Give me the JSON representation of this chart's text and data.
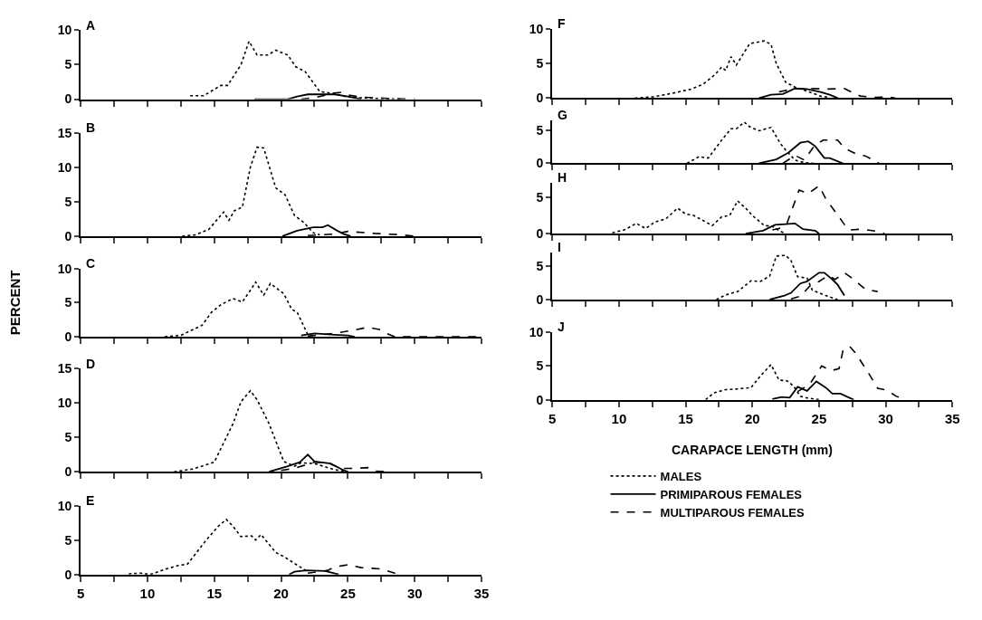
{
  "chart_data": [
    {
      "type": "line",
      "title": "A",
      "xlim": [
        5,
        35
      ],
      "xticks": [
        5,
        {
          "value": 7.5,
          "label": null
        },
        10,
        {
          "value": 12.5,
          "label": null
        },
        15,
        {
          "value": 17.5,
          "label": null
        },
        20,
        {
          "value": 22.5,
          "label": null
        },
        25,
        {
          "value": 27.5,
          "label": null
        },
        30,
        {
          "value": 32.5,
          "label": null
        },
        35
      ],
      "ylim": [
        0,
        10
      ],
      "yticks": [
        0,
        5,
        10
      ],
      "tick_labels": "y",
      "series": [
        {
          "color": "#000000",
          "line_style": "dotted",
          "x": [
            13.2,
            14.2,
            15.5,
            16,
            17,
            17.6,
            18.2,
            19,
            19.6,
            20.5,
            21.1,
            21.8,
            22.9,
            24,
            25,
            27,
            29
          ],
          "values": [
            0.5,
            0.5,
            2,
            2,
            5,
            8.4,
            6.4,
            6.4,
            7.1,
            6.4,
            4.7,
            4,
            1.1,
            0.8,
            0.3,
            0.1,
            0
          ]
        },
        {
          "color": "#000000",
          "line_style": "solid",
          "x": [
            18,
            20.5,
            21.2,
            22,
            23,
            24,
            25,
            26
          ],
          "values": [
            0,
            0,
            0.4,
            0.7,
            0.7,
            0.7,
            0.4,
            0
          ]
        },
        {
          "color": "#000000",
          "line_style": "dashed",
          "x": [
            21.5,
            22.5,
            24,
            24.5,
            25,
            26,
            27,
            28,
            30
          ],
          "values": [
            0,
            0.2,
            0.9,
            1,
            0.6,
            0.3,
            0.2,
            0.1,
            0
          ]
        }
      ]
    },
    {
      "type": "line",
      "title": "B",
      "xlim": [
        5,
        35
      ],
      "xticks": [
        5,
        {
          "value": 7.5,
          "label": null
        },
        10,
        {
          "value": 12.5,
          "label": null
        },
        15,
        {
          "value": 17.5,
          "label": null
        },
        20,
        {
          "value": 22.5,
          "label": null
        },
        25,
        {
          "value": 27.5,
          "label": null
        },
        30,
        {
          "value": 32.5,
          "label": null
        },
        35
      ],
      "ylim": [
        0,
        15
      ],
      "yticks": [
        0,
        5,
        10,
        15
      ],
      "tick_labels": "y",
      "series": [
        {
          "color": "#000000",
          "line_style": "dotted",
          "x": [
            12.6,
            13.6,
            14.6,
            15.7,
            16.1,
            16.5,
            17.1,
            17.7,
            18.2,
            18.7,
            19.6,
            20.3,
            21,
            21.7,
            22.4,
            22.9
          ],
          "values": [
            0,
            0.2,
            1,
            3.5,
            2.3,
            3.7,
            4.2,
            10,
            12.9,
            12.8,
            7,
            6,
            3,
            2,
            0.5,
            0.2
          ]
        },
        {
          "color": "#000000",
          "line_style": "solid",
          "x": [
            20.1,
            21.2,
            22.4,
            23.1,
            23.5,
            24.2,
            24.7,
            25.2
          ],
          "values": [
            0,
            0.8,
            1.3,
            1.3,
            1.6,
            0.8,
            0.3,
            0
          ]
        },
        {
          "color": "#000000",
          "line_style": "dashed",
          "x": [
            22,
            24,
            25,
            27,
            29,
            30
          ],
          "values": [
            0.1,
            0.3,
            0.7,
            0.4,
            0.2,
            0
          ]
        }
      ]
    },
    {
      "type": "line",
      "title": "C",
      "ylabel": "PERCENT",
      "xlim": [
        5,
        35
      ],
      "xticks": [
        5,
        {
          "value": 7.5,
          "label": null
        },
        10,
        {
          "value": 12.5,
          "label": null
        },
        15,
        {
          "value": 17.5,
          "label": null
        },
        20,
        {
          "value": 22.5,
          "label": null
        },
        25,
        {
          "value": 27.5,
          "label": null
        },
        30,
        {
          "value": 32.5,
          "label": null
        },
        35
      ],
      "ylim": [
        0,
        10
      ],
      "yticks": [
        0,
        5,
        10
      ],
      "tick_labels": "y",
      "series": [
        {
          "color": "#000000",
          "line_style": "dotted",
          "x": [
            11.3,
            12.5,
            14.1,
            14.8,
            15.5,
            16.4,
            17.1,
            17.6,
            18.1,
            18.7,
            19.2,
            20.2,
            20.8,
            21.2,
            22,
            22.4
          ],
          "values": [
            0,
            0.2,
            1.7,
            3.6,
            4.7,
            5.6,
            5.1,
            6.5,
            8,
            6.1,
            7.8,
            6.3,
            4,
            3.6,
            0.3,
            0.2
          ]
        },
        {
          "color": "#000000",
          "line_style": "solid",
          "x": [
            21.5,
            22.5,
            24,
            25,
            25.5
          ],
          "values": [
            0.2,
            0.5,
            0.3,
            0.2,
            0
          ]
        },
        {
          "color": "#000000",
          "line_style": "dashed",
          "x": [
            22,
            24,
            25.5,
            26.5,
            27.5,
            28,
            28.5,
            35
          ],
          "values": [
            0.1,
            0.5,
            1,
            1.4,
            1,
            0.4,
            0,
            0
          ]
        }
      ]
    },
    {
      "type": "line",
      "title": "D",
      "xlim": [
        5,
        35
      ],
      "xticks": [
        5,
        {
          "value": 7.5,
          "label": null
        },
        10,
        {
          "value": 12.5,
          "label": null
        },
        15,
        {
          "value": 17.5,
          "label": null
        },
        20,
        {
          "value": 22.5,
          "label": null
        },
        25,
        {
          "value": 27.5,
          "label": null
        },
        30,
        {
          "value": 32.5,
          "label": null
        },
        35
      ],
      "ylim": [
        0,
        15
      ],
      "yticks": [
        0,
        5,
        10,
        15
      ],
      "tick_labels": "y",
      "series": [
        {
          "color": "#000000",
          "line_style": "dotted",
          "x": [
            12,
            13.4,
            15,
            16.4,
            17,
            17.7,
            18.2,
            19.1,
            19.7,
            20.2,
            21,
            21.5,
            22.5,
            24,
            25
          ],
          "values": [
            0,
            0.4,
            1.4,
            7,
            10.2,
            11.8,
            10.5,
            7,
            4,
            1.5,
            0.8,
            1.3,
            1.2,
            0.3,
            0
          ]
        },
        {
          "color": "#000000",
          "line_style": "solid",
          "x": [
            19.1,
            20.5,
            21.4,
            22,
            22.5,
            23.7,
            24.6,
            25
          ],
          "values": [
            0,
            0.8,
            1.4,
            2.5,
            1.5,
            1.2,
            0.3,
            0
          ]
        },
        {
          "color": "#000000",
          "line_style": "dashed",
          "x": [
            20,
            21,
            22.5,
            23.5,
            24.5,
            25.5,
            26.5,
            27,
            28
          ],
          "values": [
            0.2,
            0.5,
            1.4,
            1.3,
            0.5,
            0.5,
            0.6,
            0.1,
            0
          ]
        }
      ]
    },
    {
      "type": "line",
      "title": "E",
      "xlim": [
        5,
        35
      ],
      "xticks": [
        5,
        {
          "value": 7.5,
          "label": null
        },
        10,
        {
          "value": 12.5,
          "label": null
        },
        15,
        {
          "value": 17.5,
          "label": null
        },
        20,
        {
          "value": 22.5,
          "label": null
        },
        25,
        {
          "value": 27.5,
          "label": null
        },
        30,
        {
          "value": 32.5,
          "label": null
        },
        35
      ],
      "ylim": [
        0,
        10
      ],
      "yticks": [
        0,
        5,
        10
      ],
      "series": [
        {
          "color": "#000000",
          "line_style": "dotted",
          "x": [
            8.6,
            9.5,
            10.2,
            11.4,
            12.3,
            13,
            14.4,
            15.3,
            15.9,
            16.4,
            17,
            17.8,
            18.1,
            18.5,
            19.6,
            20.3,
            21,
            22
          ],
          "values": [
            0.1,
            0.2,
            0,
            0.8,
            1.3,
            1.5,
            5,
            7,
            8,
            7,
            5.5,
            5.6,
            5,
            5.8,
            3.2,
            2.5,
            1.6,
            0.4
          ]
        },
        {
          "color": "#000000",
          "line_style": "solid",
          "x": [
            20.6,
            21,
            21.9,
            23.3,
            24.1,
            24.3
          ],
          "values": [
            0,
            0.4,
            0.6,
            0.5,
            0.1,
            0
          ]
        },
        {
          "color": "#000000",
          "line_style": "dashed",
          "x": [
            22,
            23.5,
            24,
            25,
            26,
            27.5,
            28.5,
            29
          ],
          "values": [
            0.2,
            0.6,
            1.1,
            1.4,
            1,
            0.8,
            0.2,
            0
          ]
        }
      ]
    },
    {
      "type": "line",
      "title": "F",
      "xlim": [
        5,
        35
      ],
      "xticks": [
        5,
        {
          "value": 7.5,
          "label": null
        },
        10,
        {
          "value": 12.5,
          "label": null
        },
        15,
        {
          "value": 17.5,
          "label": null
        },
        20,
        {
          "value": 22.5,
          "label": null
        },
        25,
        {
          "value": 27.5,
          "label": null
        },
        30,
        {
          "value": 32.5,
          "label": null
        },
        35
      ],
      "ylim": [
        0,
        10
      ],
      "yticks": [
        0,
        5,
        10
      ],
      "tick_labels": "y",
      "series": [
        {
          "color": "#000000",
          "line_style": "dotted",
          "x": [
            11.2,
            12.6,
            14,
            15.4,
            16.3,
            17.2,
            17.7,
            18,
            18.4,
            18.8,
            19.8,
            20.9,
            21.4,
            21.8,
            22.5,
            23.2,
            24.1,
            25.1,
            25.8
          ],
          "values": [
            0,
            0.2,
            0.7,
            1.3,
            2,
            3.4,
            4.5,
            4,
            6,
            4.8,
            7.9,
            8.3,
            7.8,
            5,
            2.3,
            1.6,
            1,
            0.3,
            0.1
          ]
        },
        {
          "color": "#000000",
          "line_style": "solid",
          "x": [
            20.5,
            21.4,
            22.3,
            23.2,
            24.1,
            25.1,
            25.8,
            26.4
          ],
          "values": [
            0,
            0.5,
            0.6,
            1.4,
            1.3,
            0.9,
            0.5,
            0
          ]
        },
        {
          "color": "#000000",
          "line_style": "dashed",
          "x": [
            22,
            23.2,
            24.4,
            25.5,
            26.9,
            27.6,
            28.1,
            29.3,
            30.2,
            30.7
          ],
          "values": [
            0.9,
            1.4,
            1.4,
            1.3,
            1.4,
            0.7,
            0.3,
            0.1,
            0.2,
            0
          ]
        }
      ]
    },
    {
      "type": "line",
      "title": "G",
      "xlim": [
        5,
        35
      ],
      "xticks": [
        5,
        {
          "value": 7.5,
          "label": null
        },
        10,
        {
          "value": 12.5,
          "label": null
        },
        15,
        {
          "value": 17.5,
          "label": null
        },
        20,
        {
          "value": 22.5,
          "label": null
        },
        25,
        {
          "value": 27.5,
          "label": null
        },
        30,
        {
          "value": 32.5,
          "label": null
        },
        35
      ],
      "ylim": [
        0,
        6.5
      ],
      "yticks": [
        0,
        5
      ],
      "tick_labels": "y",
      "series": [
        {
          "color": "#000000",
          "line_style": "dotted",
          "x": [
            15.1,
            16,
            16.7,
            17.7,
            18.4,
            18.8,
            19.4,
            19.8,
            20.5,
            21.4,
            22.1,
            22.5,
            23.2,
            23.9,
            24.6
          ],
          "values": [
            0,
            1,
            0.8,
            3.5,
            5.2,
            5.2,
            6.2,
            5.5,
            4.9,
            5.4,
            3,
            2,
            0.5,
            0.1,
            0
          ]
        },
        {
          "color": "#000000",
          "line_style": "solid",
          "x": [
            20.5,
            21.8,
            22.7,
            23.6,
            24.2,
            24.7,
            25.4,
            25.8,
            26.8
          ],
          "values": [
            0,
            0.6,
            1.6,
            3.1,
            3.3,
            2.6,
            0.8,
            0.8,
            0
          ]
        },
        {
          "color": "#000000",
          "line_style": "dashed",
          "x": [
            22.3,
            23.2,
            23.9,
            24.6,
            25.3,
            26.4,
            26.9,
            27.8,
            28.5,
            29.5
          ],
          "values": [
            0,
            1.2,
            0.5,
            2.5,
            3.5,
            3.5,
            2.3,
            1.4,
            1.1,
            0
          ]
        }
      ]
    },
    {
      "type": "line",
      "title": "H",
      "xlim": [
        5,
        35
      ],
      "xticks": [
        5,
        {
          "value": 7.5,
          "label": null
        },
        10,
        {
          "value": 12.5,
          "label": null
        },
        15,
        {
          "value": 17.5,
          "label": null
        },
        20,
        {
          "value": 22.5,
          "label": null
        },
        25,
        {
          "value": 27.5,
          "label": null
        },
        30,
        {
          "value": 32.5,
          "label": null
        },
        35
      ],
      "ylim": [
        0,
        7
      ],
      "yticks": [
        0,
        5
      ],
      "tick_labels": "y",
      "series": [
        {
          "color": "#000000",
          "line_style": "dotted",
          "x": [
            9.5,
            10.4,
            11.3,
            12,
            12.7,
            13.5,
            14.4,
            15,
            15.6,
            16.5,
            17,
            17.7,
            18.3,
            18.9,
            19.5,
            20,
            20.9,
            21.5,
            22,
            22.5
          ],
          "values": [
            0.1,
            0.5,
            1.4,
            0.7,
            1.6,
            2,
            3.5,
            2.7,
            2.5,
            1.6,
            1.1,
            2.3,
            2.5,
            4.5,
            3.5,
            2.5,
            1.1,
            1,
            0.4,
            0
          ]
        },
        {
          "color": "#000000",
          "line_style": "solid",
          "x": [
            19.5,
            20.8,
            21.7,
            22.5,
            23.2,
            23.8,
            24.7,
            25
          ],
          "values": [
            0,
            0.4,
            1.2,
            1.3,
            1.4,
            0.6,
            0.4,
            0
          ]
        },
        {
          "color": "#000000",
          "line_style": "dashed",
          "x": [
            21.5,
            22,
            22.6,
            23.5,
            24.2,
            25,
            25.5,
            26.5,
            27,
            27.3,
            28.2,
            29.4,
            29.9
          ],
          "values": [
            0.5,
            0.7,
            1.4,
            6,
            5.5,
            6.6,
            4.8,
            2.3,
            1,
            0.5,
            0.6,
            0.3,
            0
          ]
        }
      ]
    },
    {
      "type": "line",
      "title": "I",
      "xlim": [
        5,
        35
      ],
      "xticks": [
        5,
        {
          "value": 7.5,
          "label": null
        },
        10,
        {
          "value": 12.5,
          "label": null
        },
        15,
        {
          "value": 17.5,
          "label": null
        },
        20,
        {
          "value": 22.5,
          "label": null
        },
        25,
        {
          "value": 27.5,
          "label": null
        },
        30,
        {
          "value": 32.5,
          "label": null
        },
        35
      ],
      "ylim": [
        0,
        7
      ],
      "yticks": [
        0,
        5
      ],
      "tick_labels": "y",
      "series": [
        {
          "color": "#000000",
          "line_style": "dotted",
          "x": [
            17.3,
            18,
            18.9,
            19.9,
            20.6,
            21.3,
            21.8,
            22.5,
            22.9,
            23.4,
            24.1,
            24.5,
            25.5,
            26.2,
            26.4
          ],
          "values": [
            0,
            0.7,
            1.2,
            2.8,
            2.7,
            3.5,
            6.5,
            6.6,
            5.8,
            3.4,
            3.2,
            1.4,
            0.6,
            0.1,
            0
          ]
        },
        {
          "color": "#000000",
          "line_style": "solid",
          "x": [
            21.3,
            22.4,
            22.9,
            23.6,
            24.1,
            25,
            25.4,
            26,
            26.4,
            26.9
          ],
          "values": [
            0,
            0.6,
            1,
            2.4,
            2.7,
            4,
            4,
            3,
            2.2,
            0.6
          ]
        },
        {
          "color": "#000000",
          "line_style": "dashed",
          "x": [
            22.9,
            23.6,
            24.3,
            25,
            25.7,
            26.2,
            26.9,
            27.6,
            28.5,
            29.4
          ],
          "values": [
            0.1,
            0.5,
            2,
            2.7,
            3.6,
            3,
            4,
            3,
            1.5,
            1.2
          ]
        }
      ]
    },
    {
      "type": "line",
      "title": "J",
      "xlabel": "CARAPACE LENGTH (mm)",
      "legend": "bottom",
      "xlim": [
        5,
        35
      ],
      "xticks": [
        5,
        {
          "value": 7.5,
          "label": null
        },
        10,
        {
          "value": 12.5,
          "label": null
        },
        15,
        {
          "value": 17.5,
          "label": null
        },
        20,
        {
          "value": 22.5,
          "label": null
        },
        25,
        {
          "value": 27.5,
          "label": null
        },
        30,
        {
          "value": 32.5,
          "label": null
        },
        35
      ],
      "ylim": [
        0,
        10
      ],
      "yticks": [
        0,
        5,
        10
      ],
      "series": [
        {
          "name": "MALES",
          "color": "#000000",
          "line_style": "dotted",
          "x": [
            16.5,
            17.1,
            18,
            18.9,
            19.9,
            20.6,
            21.4,
            22,
            22.6,
            23.1,
            23.6,
            24,
            25
          ],
          "values": [
            0,
            1,
            1.5,
            1.6,
            1.8,
            3.5,
            5.2,
            2.9,
            2.8,
            2,
            0.5,
            0.3,
            0
          ]
        },
        {
          "name": "PRIMIPAROUS FEMALES",
          "color": "#000000",
          "line_style": "solid",
          "x": [
            21.5,
            22.2,
            22.8,
            23.4,
            24.1,
            24.8,
            25.5,
            26,
            26.6,
            27.6
          ],
          "values": [
            0.1,
            0.4,
            0.3,
            1.9,
            1.3,
            2.7,
            1.8,
            0.9,
            0.9,
            0
          ]
        },
        {
          "name": "MULTIPAROUS FEMALES",
          "color": "#000000",
          "line_style": "dashed",
          "x": [
            23.4,
            24.3,
            25.2,
            25.9,
            26.5,
            26.8,
            27.3,
            27.7,
            28.7,
            29.4,
            30.1,
            30.8,
            31.5
          ],
          "values": [
            1.2,
            2.3,
            5,
            4.3,
            4.6,
            7.3,
            7.9,
            7,
            4,
            1.7,
            1.4,
            0.5,
            0
          ]
        }
      ]
    }
  ]
}
